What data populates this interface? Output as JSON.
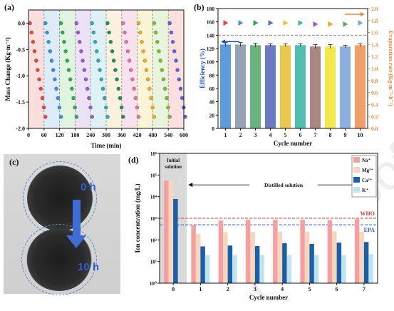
{
  "chart_data": [
    {
      "panel": "(a)",
      "type": "scatter",
      "xlabel": "Time (min)",
      "ylabel": "Mass Change (Kg·m⁻²)",
      "xlim": [
        0,
        600
      ],
      "ylim": [
        -2.0,
        0.25
      ],
      "xticks": [
        "0",
        "60",
        "120",
        "180",
        "240",
        "300",
        "360",
        "420",
        "480",
        "540",
        "600"
      ],
      "yticks": [
        "0.0",
        "-0.5",
        "-1.0",
        "-1.5",
        "-2.0"
      ],
      "cycles": 10,
      "cycle_length_min": 60,
      "points_per_cycle": 11,
      "final_mass_change": -1.78,
      "colors": [
        "#e8443b",
        "#3b8fd6",
        "#2fa84f",
        "#9b59c9",
        "#2fa7b5",
        "#1f8f5a",
        "#e36fa8",
        "#f0a820",
        "#7ab83a",
        "#5b63d6"
      ],
      "bands": [
        "#f9d3d3",
        "#d3e4f7",
        "#d6f0d6",
        "#e7d8f2",
        "#d3eef2",
        "#f9ecd3",
        "#f6d8e8",
        "#fbf0c8",
        "#e1f0d0",
        "#f9d3d3"
      ]
    },
    {
      "panel": "(b)",
      "type": "bar",
      "xlabel": "Cycle number",
      "ylabel": "Efficiency (%)",
      "y2label": "Evaporation rate (Kg·m⁻²·h⁻¹)",
      "categories": [
        "1",
        "2",
        "3",
        "4",
        "5",
        "6",
        "7",
        "8",
        "9",
        "10"
      ],
      "values": [
        126,
        126,
        125,
        125,
        125,
        125,
        123,
        123,
        123,
        125
      ],
      "errors": [
        3,
        3,
        3,
        2,
        2,
        2,
        3,
        3,
        2,
        2
      ],
      "evaporation_rate": [
        1.76,
        1.76,
        1.76,
        1.76,
        1.76,
        1.76,
        1.74,
        1.74,
        1.74,
        1.76
      ],
      "colors": [
        "#4e8fd6",
        "#8b9aa8",
        "#5aa870",
        "#5b6bbd",
        "#e8c23a",
        "#3fb6a8",
        "#a07a74",
        "#f3e33a",
        "#7fa7d8",
        "#f0955a"
      ],
      "marker_colors": [
        "#e8443b",
        "#4e8fd6",
        "#2fa84f",
        "#5b6bbd",
        "#e8c23a",
        "#3fb6a8",
        "#9b59c9",
        "#f0a820",
        "#5aa870",
        "#7fa7d8"
      ],
      "ylim": [
        0,
        180
      ],
      "y2lim": [
        0.0,
        2.0
      ],
      "yticks": [
        "0",
        "20",
        "40",
        "60",
        "80",
        "100",
        "120",
        "140",
        "160",
        "180"
      ],
      "y2ticks": [
        "0.0",
        "0.2",
        "0.4",
        "0.6",
        "0.8",
        "1.0",
        "1.2",
        "1.4",
        "1.6",
        "1.8",
        "2.0"
      ],
      "ref_line": 140
    },
    {
      "panel": "(d)",
      "type": "bar",
      "xlabel": "Cycle number",
      "ylabel": "Ion concentration (mg/L)",
      "log_scale": true,
      "ylim": [
        1,
        1000000
      ],
      "yticks": [
        "10⁰",
        "10¹",
        "10²",
        "10³",
        "10⁴",
        "10⁵",
        "10⁶"
      ],
      "categories": [
        "0",
        "1",
        "2",
        "3",
        "4",
        "5",
        "6",
        "7"
      ],
      "series": [
        {
          "name": "Na⁺",
          "color": "#f4a0a0",
          "values": [
            55000,
            480,
            780,
            870,
            850,
            850,
            830,
            920
          ]
        },
        {
          "name": "Mg²⁺",
          "color": "#f7d6c0",
          "values": [
            55000,
            190,
            230,
            230,
            240,
            240,
            250,
            240
          ]
        },
        {
          "name": "Ca²⁺",
          "color": "#1d5fa5",
          "values": [
            7800,
            50,
            55,
            52,
            70,
            65,
            75,
            80
          ]
        },
        {
          "name": "K⁺",
          "color": "#bfe3ef",
          "values": [
            0,
            20,
            20,
            20,
            20,
            20,
            20,
            22
          ]
        }
      ],
      "who_line": 1000,
      "epa_line": 500,
      "who_label": "WHO",
      "epa_label": "EPA",
      "initial_label": "Initial\nsolution",
      "distilled_label": "Distilled solution"
    }
  ],
  "photo": {
    "label": "(c)",
    "top_label": "0 h",
    "bottom_label": "10 h"
  },
  "watermark": "Pre-proofs"
}
